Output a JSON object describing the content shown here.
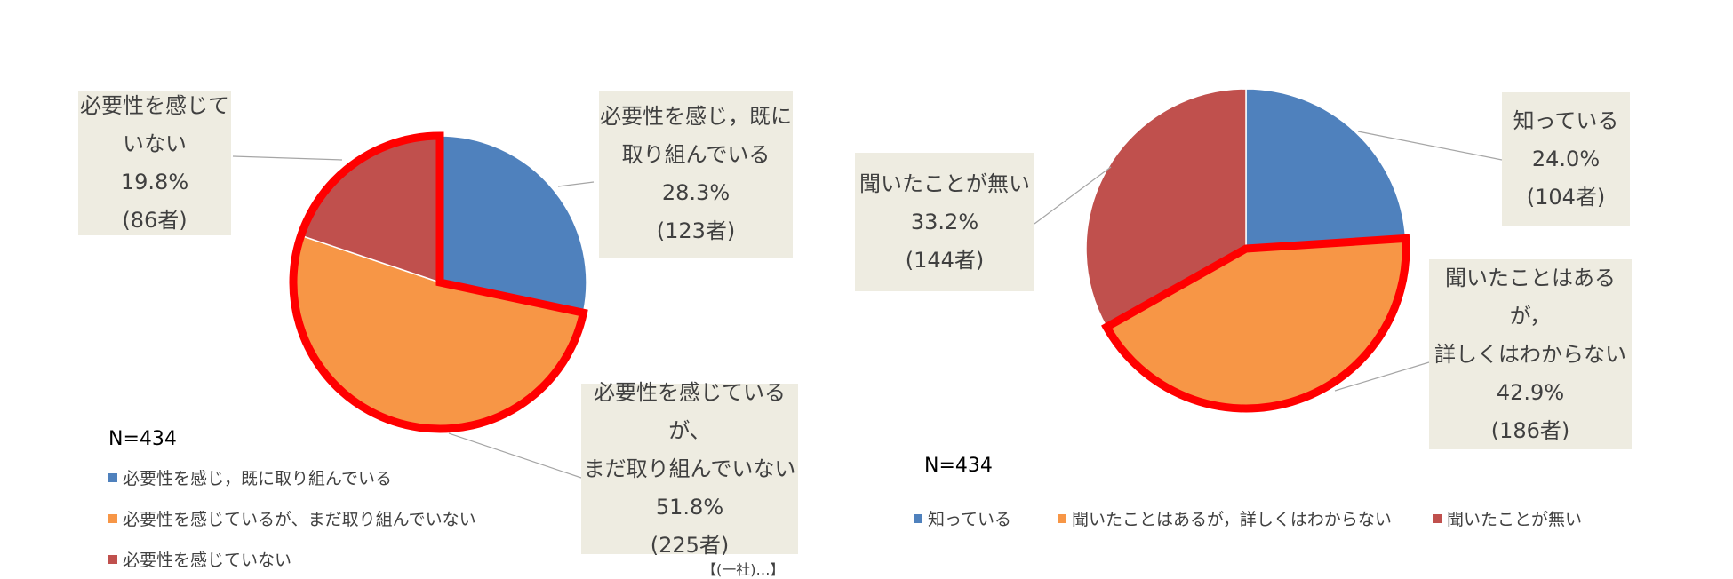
{
  "chart_data": [
    {
      "type": "pie",
      "n_label": "N=434",
      "slices": [
        {
          "label": "必要性を感じ，既に取り組んでいる",
          "callout": [
            "必要性を感じ，既に",
            "取り組んでいる"
          ],
          "percent": 28.3,
          "percent_text": "28.3%",
          "count_text": "(123者)",
          "color": "#4f81bd"
        },
        {
          "label": "必要性を感じているが、まだ取り組んでいない",
          "callout": [
            "必要性を感じているが、",
            "まだ取り組んでいない"
          ],
          "percent": 51.8,
          "percent_text": "51.8%",
          "count_text": "(225者)",
          "color": "#f79646"
        },
        {
          "label": "必要性を感じていない",
          "callout": [
            "必要性を感じて",
            "いない"
          ],
          "percent": 19.8,
          "percent_text": "19.8%",
          "count_text": "(86者)",
          "color": "#c0504d"
        }
      ],
      "highlight_color": "#ff0000"
    },
    {
      "type": "pie",
      "n_label": "N=434",
      "slices": [
        {
          "label": "知っている",
          "callout": [
            "知っている"
          ],
          "percent": 24.0,
          "percent_text": "24.0%",
          "count_text": "(104者)",
          "color": "#4f81bd"
        },
        {
          "label": "聞いたことはあるが，詳しくはわからない",
          "callout": [
            "聞いたことはあるが，",
            "詳しくはわからない"
          ],
          "percent": 42.9,
          "percent_text": "42.9%",
          "count_text": "(186者)",
          "color": "#f79646"
        },
        {
          "label": "聞いたことが無い",
          "callout": [
            "聞いたことが無い"
          ],
          "percent": 33.2,
          "percent_text": "33.2%",
          "count_text": "(144者)",
          "color": "#c0504d"
        }
      ],
      "highlight_color": "#ff0000"
    }
  ],
  "footnote": "【(一社)…】"
}
